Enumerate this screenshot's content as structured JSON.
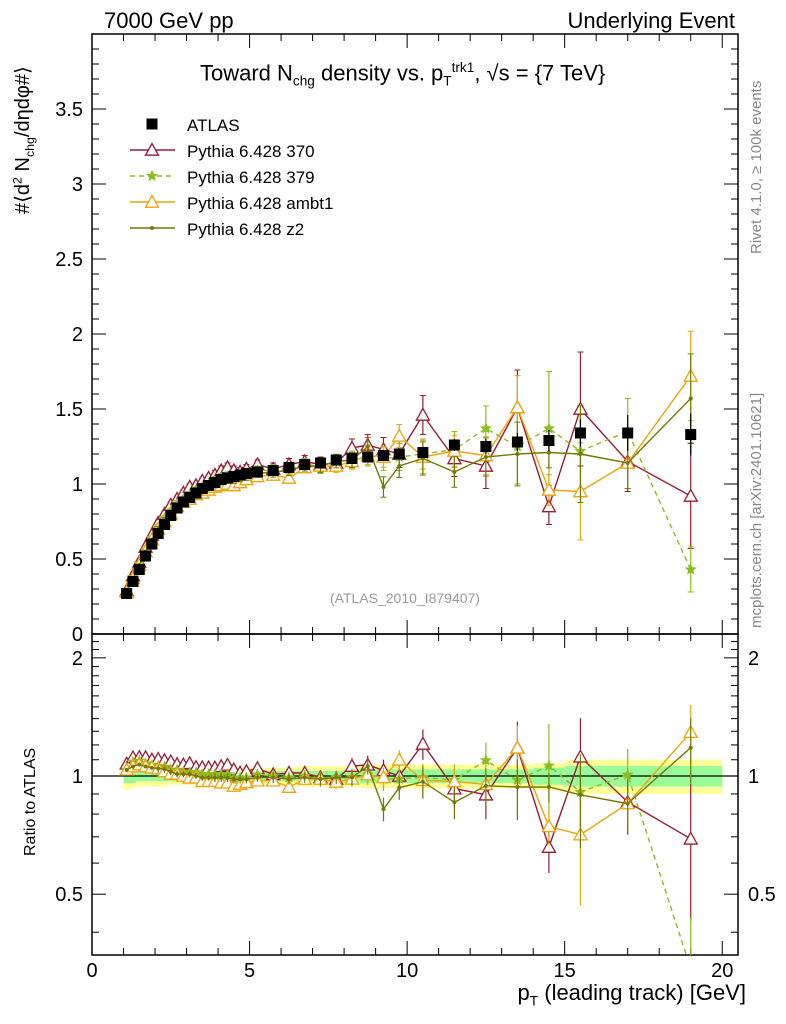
{
  "header": {
    "left": "7000 GeV pp",
    "right": "Underlying Event"
  },
  "side": {
    "rivet": "Rivet 4.1.0, ≥ 100k events",
    "mcplots": "mcplots.cern.ch [arXiv:2401.10621]"
  },
  "watermark": "(ATLAS_2010_I879407)",
  "labels": {
    "ratio_ylabel": "Ratio to ATLAS"
  },
  "colors": {
    "atlas": "#000000",
    "p370": "#9b1b30",
    "p379": "#8cbc1e",
    "ambt1": "#f0a30a",
    "z2": "#727a00",
    "band_inner": "#98fb98",
    "band_outer": "#ffff99"
  },
  "chart_data": {
    "type": "scatter",
    "title": "Toward N_chg density vs. p_T^trk1, √s = {7 TeV}",
    "xlabel": "p_T (leading track) [GeV]",
    "ylabel": "#⟨d² N_chg/dηdφ#⟩",
    "xlim": [
      0,
      20.5
    ],
    "ylim": [
      0,
      4.0
    ],
    "ratio_ylim": [
      0.35,
      2.3
    ],
    "x_ticks": [
      0,
      5,
      10,
      15,
      20
    ],
    "y_ticks": [
      0.5,
      1,
      1.5,
      2,
      2.5,
      3,
      3.5
    ],
    "ratio_ticks": [
      0.5,
      1,
      2
    ],
    "y_zero_label": "0",
    "legend_position": "top-left",
    "x": [
      1.1,
      1.3,
      1.5,
      1.7,
      1.9,
      2.1,
      2.3,
      2.5,
      2.7,
      2.9,
      3.1,
      3.3,
      3.5,
      3.7,
      3.9,
      4.1,
      4.3,
      4.5,
      4.7,
      4.9,
      5.25,
      5.75,
      6.25,
      6.75,
      7.25,
      7.75,
      8.25,
      8.75,
      9.25,
      9.75,
      10.5,
      11.5,
      12.5,
      13.5,
      14.5,
      15.5,
      17.0,
      19.0
    ],
    "reference": {
      "name": "ATLAS",
      "values": [
        0.27,
        0.35,
        0.43,
        0.52,
        0.6,
        0.67,
        0.73,
        0.79,
        0.84,
        0.88,
        0.91,
        0.94,
        0.97,
        0.99,
        1.01,
        1.03,
        1.04,
        1.05,
        1.06,
        1.07,
        1.08,
        1.09,
        1.11,
        1.13,
        1.14,
        1.16,
        1.17,
        1.18,
        1.19,
        1.2,
        1.21,
        1.26,
        1.25,
        1.28,
        1.29,
        1.34,
        1.34,
        1.33
      ],
      "errors": [
        0.01,
        0.01,
        0.01,
        0.01,
        0.01,
        0.01,
        0.01,
        0.01,
        0.01,
        0.01,
        0.01,
        0.01,
        0.01,
        0.01,
        0.01,
        0.01,
        0.01,
        0.01,
        0.01,
        0.01,
        0.01,
        0.01,
        0.01,
        0.02,
        0.02,
        0.02,
        0.02,
        0.02,
        0.03,
        0.03,
        0.03,
        0.04,
        0.05,
        0.06,
        0.07,
        0.09,
        0.12,
        0.14
      ]
    },
    "band_inner": [
      0.04,
      0.04,
      0.03,
      0.03,
      0.03,
      0.03,
      0.03,
      0.03,
      0.03,
      0.03,
      0.03,
      0.03,
      0.03,
      0.03,
      0.03,
      0.03,
      0.03,
      0.03,
      0.03,
      0.03,
      0.03,
      0.03,
      0.03,
      0.03,
      0.03,
      0.03,
      0.04,
      0.04,
      0.04,
      0.04,
      0.04,
      0.04,
      0.04,
      0.04,
      0.05,
      0.06,
      0.06,
      0.06
    ],
    "band_outer": [
      0.08,
      0.07,
      0.06,
      0.06,
      0.06,
      0.06,
      0.06,
      0.05,
      0.05,
      0.05,
      0.05,
      0.05,
      0.05,
      0.05,
      0.05,
      0.05,
      0.05,
      0.05,
      0.05,
      0.05,
      0.05,
      0.05,
      0.05,
      0.06,
      0.06,
      0.06,
      0.06,
      0.07,
      0.07,
      0.07,
      0.07,
      0.07,
      0.07,
      0.07,
      0.08,
      0.1,
      0.1,
      0.1
    ],
    "series": [
      {
        "name": "Pythia 6.428 370",
        "marker": "triangle-open",
        "values": [
          0.29,
          0.39,
          0.48,
          0.58,
          0.66,
          0.74,
          0.8,
          0.86,
          0.9,
          0.94,
          0.98,
          0.99,
          1.02,
          1.04,
          1.06,
          1.09,
          1.11,
          1.09,
          1.08,
          1.1,
          1.13,
          1.1,
          1.13,
          1.15,
          1.13,
          1.14,
          1.24,
          1.26,
          1.23,
          1.2,
          1.46,
          1.17,
          1.12,
          1.51,
          0.85,
          1.5,
          1.15,
          0.92
        ],
        "errors": [
          0.01,
          0.01,
          0.01,
          0.01,
          0.01,
          0.02,
          0.02,
          0.02,
          0.02,
          0.02,
          0.02,
          0.02,
          0.02,
          0.02,
          0.03,
          0.03,
          0.03,
          0.03,
          0.03,
          0.03,
          0.03,
          0.04,
          0.04,
          0.04,
          0.05,
          0.05,
          0.06,
          0.07,
          0.08,
          0.09,
          0.13,
          0.12,
          0.15,
          0.25,
          0.12,
          0.38,
          0.2,
          0.35
        ]
      },
      {
        "name": "Pythia 6.428 379",
        "marker": "star",
        "values": [
          0.28,
          0.38,
          0.47,
          0.56,
          0.64,
          0.71,
          0.77,
          0.82,
          0.87,
          0.9,
          0.93,
          0.96,
          0.98,
          1.0,
          1.02,
          1.04,
          1.05,
          1.04,
          1.05,
          1.06,
          1.09,
          1.09,
          1.1,
          1.13,
          1.12,
          1.15,
          1.16,
          1.19,
          1.17,
          1.18,
          1.2,
          1.23,
          1.37,
          1.25,
          1.37,
          1.22,
          1.35,
          0.43
        ],
        "errors": [
          0.01,
          0.01,
          0.01,
          0.01,
          0.01,
          0.02,
          0.02,
          0.02,
          0.02,
          0.02,
          0.02,
          0.02,
          0.02,
          0.02,
          0.03,
          0.03,
          0.03,
          0.03,
          0.03,
          0.03,
          0.03,
          0.04,
          0.04,
          0.04,
          0.05,
          0.05,
          0.06,
          0.07,
          0.08,
          0.09,
          0.1,
          0.12,
          0.15,
          0.25,
          0.38,
          0.25,
          0.22,
          0.15
        ]
      },
      {
        "name": "Pythia 6.428 ambt1",
        "marker": "triangle-open",
        "values": [
          0.28,
          0.37,
          0.46,
          0.55,
          0.63,
          0.7,
          0.75,
          0.8,
          0.85,
          0.88,
          0.9,
          0.93,
          0.94,
          0.96,
          0.98,
          0.99,
          1.0,
          0.99,
          1.01,
          1.03,
          1.05,
          1.06,
          1.04,
          1.11,
          1.12,
          1.12,
          1.15,
          1.19,
          1.18,
          1.32,
          1.18,
          1.22,
          1.19,
          1.51,
          0.96,
          0.95,
          1.14,
          1.72
        ]
      },
      {
        "name": "Pythia 6.428 z2",
        "marker": "dot",
        "values": [
          0.28,
          0.37,
          0.46,
          0.55,
          0.63,
          0.7,
          0.76,
          0.81,
          0.85,
          0.89,
          0.92,
          0.94,
          0.96,
          0.98,
          1.0,
          1.02,
          1.03,
          1.03,
          1.04,
          1.05,
          1.07,
          1.08,
          1.09,
          1.12,
          1.12,
          1.15,
          1.16,
          1.25,
          0.98,
          1.12,
          1.17,
          1.08,
          1.18,
          1.2,
          1.21,
          1.2,
          1.14,
          1.57
        ]
      }
    ]
  }
}
